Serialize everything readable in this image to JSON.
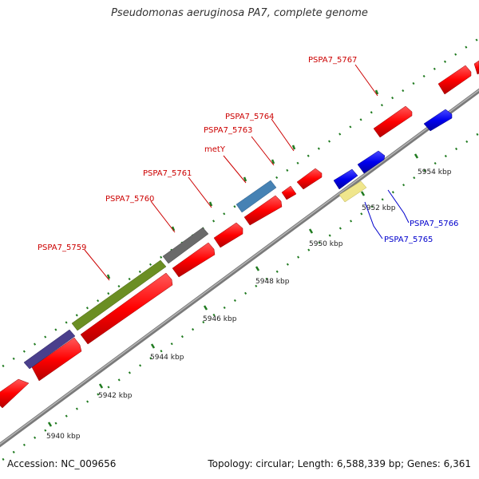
{
  "title": "Pseudomonas aeruginosa PA7, complete genome",
  "footer": {
    "accession": "Accession: NC_009656",
    "summary": "Topology: circular; Length: 6,588,339 bp; Genes: 6,361"
  },
  "colors": {
    "backbone": "#8c8c8c",
    "tick": "#1f7a1f",
    "forward_gene": "#ff0000",
    "reverse_gene": "#0000ff",
    "label_forward": "#cc0000",
    "label_reverse": "#0000cc"
  },
  "kbp_labels": [
    "5940 kbp",
    "5942 kbp",
    "5944 kbp",
    "5946 kbp",
    "5948 kbp",
    "5950 kbp",
    "5952 kbp",
    "5954 kbp"
  ],
  "gene_labels": [
    {
      "name": "PSPA7_5759",
      "strand": "forward"
    },
    {
      "name": "PSPA7_5760",
      "strand": "forward"
    },
    {
      "name": "PSPA7_5761",
      "strand": "forward"
    },
    {
      "name": "metY",
      "strand": "forward"
    },
    {
      "name": "PSPA7_5763",
      "strand": "forward"
    },
    {
      "name": "PSPA7_5764",
      "strand": "forward"
    },
    {
      "name": "PSPA7_5767",
      "strand": "forward"
    },
    {
      "name": "PSPA7_5766",
      "strand": "reverse"
    },
    {
      "name": "PSPA7_5765",
      "strand": "reverse"
    }
  ]
}
